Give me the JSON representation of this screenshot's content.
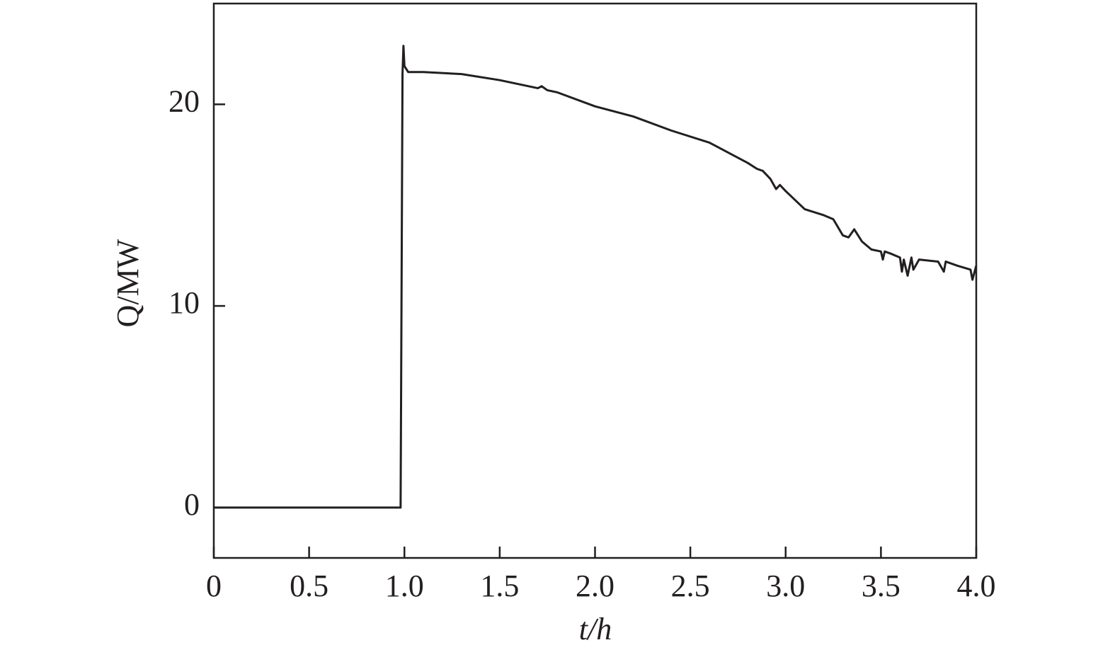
{
  "chart_data": {
    "type": "line",
    "xlabel": "t/h",
    "ylabel": "Q/MW",
    "x": [
      0,
      0.5,
      0.98,
      0.99,
      0.995,
      1.0,
      1.02,
      1.1,
      1.3,
      1.5,
      1.7,
      1.72,
      1.75,
      1.8,
      2.0,
      2.2,
      2.4,
      2.6,
      2.8,
      2.85,
      2.88,
      2.92,
      2.95,
      2.97,
      3.0,
      3.1,
      3.2,
      3.25,
      3.3,
      3.33,
      3.36,
      3.4,
      3.45,
      3.5,
      3.51,
      3.52,
      3.55,
      3.6,
      3.61,
      3.62,
      3.64,
      3.66,
      3.67,
      3.7,
      3.8,
      3.83,
      3.84,
      3.9,
      3.97,
      3.98,
      4.0
    ],
    "series": [
      {
        "name": "Q",
        "color": "#231f20",
        "values": [
          0,
          0,
          0,
          21.5,
          22.9,
          21.9,
          21.6,
          21.6,
          21.5,
          21.2,
          20.8,
          20.9,
          20.7,
          20.6,
          19.9,
          19.4,
          18.7,
          18.1,
          17.1,
          16.8,
          16.7,
          16.3,
          15.8,
          16.0,
          15.7,
          14.8,
          14.5,
          14.3,
          13.5,
          13.4,
          13.8,
          13.2,
          12.8,
          12.7,
          12.3,
          12.7,
          12.6,
          12.4,
          11.7,
          12.3,
          11.5,
          12.4,
          11.8,
          12.3,
          12.2,
          11.7,
          12.2,
          12.0,
          11.8,
          11.3,
          12.0
        ]
      }
    ],
    "xlim": [
      0,
      4.0
    ],
    "ylim": [
      -2.5,
      25
    ],
    "xticks": [
      0,
      0.5,
      {
        "value": 1,
        "label": "1.0"
      },
      1.5,
      {
        "value": 2,
        "label": "2.0"
      },
      2.5,
      {
        "value": 3,
        "label": "3.0"
      },
      3.5,
      {
        "value": 4,
        "label": "4.0"
      }
    ],
    "yticks": [
      0,
      10,
      20
    ]
  }
}
